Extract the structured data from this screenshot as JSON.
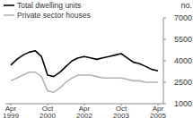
{
  "chart_data": {
    "type": "line",
    "y_label": "no.",
    "categories": [
      "Apr 1999",
      null,
      null,
      null,
      null,
      null,
      "Oct 2000",
      null,
      null,
      null,
      null,
      null,
      "Apr 2002",
      null,
      null,
      null,
      null,
      null,
      "Oct 2003",
      null,
      null,
      null,
      null,
      null,
      "Apr 2005"
    ],
    "series": [
      {
        "name": "Total dwelling units",
        "color": "#000000",
        "values": [
          3700,
          4100,
          4400,
          4600,
          4700,
          4300,
          3000,
          2900,
          3200,
          3600,
          4000,
          4200,
          4300,
          4200,
          4100,
          4200,
          4300,
          4400,
          4500,
          4200,
          3900,
          3800,
          3600,
          3400,
          3300
        ]
      },
      {
        "name": "Private sector houses",
        "color": "#b4b4b4",
        "values": [
          2600,
          2800,
          3000,
          3200,
          3200,
          2900,
          1900,
          1800,
          2100,
          2500,
          2800,
          3000,
          3000,
          3000,
          2900,
          2800,
          2800,
          2800,
          2800,
          2700,
          2600,
          2600,
          2500,
          2500,
          2500
        ]
      }
    ],
    "ylim": [
      1000,
      7000
    ],
    "yticks": [
      1000,
      2500,
      4000,
      5500,
      7000
    ],
    "grid": false,
    "legend": "top-left"
  }
}
